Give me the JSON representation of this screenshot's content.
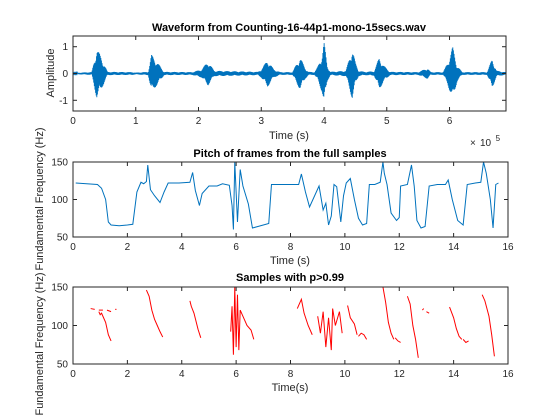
{
  "chart_data": [
    {
      "type": "line",
      "title": "Waveform from Counting-16-44p1-mono-15secs.wav",
      "xlabel": "Time (s)",
      "ylabel": "Amplitude",
      "x_exponent_label": "10",
      "x_exponent_power": "5",
      "xlim": [
        0,
        6.9
      ],
      "ylim": [
        -1.4,
        1.4
      ],
      "xticks": [
        0,
        1,
        2,
        3,
        4,
        5,
        6
      ],
      "yticks": [
        -1,
        0,
        1
      ],
      "color": "#0072BD",
      "series": [
        {
          "envelope": [
            [
              0.0,
              0.02
            ],
            [
              0.3,
              0.05
            ],
            [
              0.38,
              0.95
            ],
            [
              0.45,
              0.6
            ],
            [
              0.55,
              0.06
            ],
            [
              0.95,
              0.05
            ],
            [
              1.0,
              0.03
            ],
            [
              1.2,
              0.06
            ],
            [
              1.25,
              0.7
            ],
            [
              1.35,
              0.4
            ],
            [
              1.45,
              0.06
            ],
            [
              1.9,
              0.05
            ],
            [
              2.05,
              0.15
            ],
            [
              2.15,
              0.45
            ],
            [
              2.25,
              0.1
            ],
            [
              2.95,
              0.06
            ],
            [
              3.0,
              0.15
            ],
            [
              3.1,
              0.5
            ],
            [
              3.2,
              0.15
            ],
            [
              3.3,
              0.05
            ],
            [
              3.5,
              0.05
            ],
            [
              3.55,
              0.3
            ],
            [
              3.62,
              0.6
            ],
            [
              3.7,
              0.2
            ],
            [
              3.75,
              0.06
            ],
            [
              3.85,
              0.05
            ],
            [
              3.9,
              0.25
            ],
            [
              3.97,
              0.7
            ],
            [
              4.0,
              1.2
            ],
            [
              4.05,
              0.3
            ],
            [
              4.1,
              0.06
            ],
            [
              4.35,
              0.1
            ],
            [
              4.45,
              0.95
            ],
            [
              4.5,
              0.4
            ],
            [
              4.55,
              0.1
            ],
            [
              4.65,
              0.06
            ],
            [
              4.8,
              0.08
            ],
            [
              4.88,
              0.6
            ],
            [
              4.95,
              0.3
            ],
            [
              5.05,
              0.06
            ],
            [
              5.5,
              0.05
            ],
            [
              5.65,
              0.2
            ],
            [
              5.7,
              0.05
            ],
            [
              5.9,
              0.05
            ],
            [
              5.97,
              0.4
            ],
            [
              6.05,
              1.0
            ],
            [
              6.12,
              0.3
            ],
            [
              6.2,
              0.05
            ],
            [
              6.6,
              0.05
            ],
            [
              6.68,
              0.55
            ],
            [
              6.75,
              0.1
            ],
            [
              6.9,
              0.05
            ]
          ]
        }
      ]
    },
    {
      "type": "line",
      "title": "Pitch of frames from the full samples",
      "xlabel": "Time (s)",
      "ylabel": "Fundamental Frequency (Hz)",
      "xlim": [
        0,
        16
      ],
      "ylim": [
        50,
        150
      ],
      "xticks": [
        0,
        2,
        4,
        6,
        8,
        10,
        12,
        14,
        16
      ],
      "yticks": [
        50,
        100,
        150
      ],
      "color": "#0072BD",
      "series": [
        {
          "points": [
            [
              0.1,
              122
            ],
            [
              0.5,
              121
            ],
            [
              0.9,
              120
            ],
            [
              1.05,
              115
            ],
            [
              1.2,
              100
            ],
            [
              1.3,
              70
            ],
            [
              1.4,
              66
            ],
            [
              1.7,
              65
            ],
            [
              2.0,
              66
            ],
            [
              2.2,
              67
            ],
            [
              2.35,
              110
            ],
            [
              2.5,
              123
            ],
            [
              2.6,
              121
            ],
            [
              2.7,
              124
            ],
            [
              2.75,
              146
            ],
            [
              2.85,
              113
            ],
            [
              3.0,
              105
            ],
            [
              3.2,
              96
            ],
            [
              3.35,
              110
            ],
            [
              3.5,
              122
            ],
            [
              3.9,
              122
            ],
            [
              4.3,
              123
            ],
            [
              4.4,
              136
            ],
            [
              4.5,
              112
            ],
            [
              4.65,
              92
            ],
            [
              4.75,
              108
            ],
            [
              5.0,
              118
            ],
            [
              5.3,
              118
            ],
            [
              5.5,
              121
            ],
            [
              5.75,
              119
            ],
            [
              5.85,
              92
            ],
            [
              5.9,
              60
            ],
            [
              5.95,
              150
            ],
            [
              6.05,
              70
            ],
            [
              6.15,
              140
            ],
            [
              6.25,
              118
            ],
            [
              6.45,
              94
            ],
            [
              6.6,
              62
            ],
            [
              6.8,
              64
            ],
            [
              7.0,
              66
            ],
            [
              7.2,
              68
            ],
            [
              7.3,
              120
            ],
            [
              7.6,
              120
            ],
            [
              8.0,
              120
            ],
            [
              8.3,
              120
            ],
            [
              8.4,
              134
            ],
            [
              8.55,
              110
            ],
            [
              8.7,
              90
            ],
            [
              8.9,
              106
            ],
            [
              9.05,
              118
            ],
            [
              9.2,
              86
            ],
            [
              9.3,
              95
            ],
            [
              9.4,
              66
            ],
            [
              9.5,
              78
            ],
            [
              9.6,
              120
            ],
            [
              9.7,
              117
            ],
            [
              9.85,
              70
            ],
            [
              9.95,
              105
            ],
            [
              10.05,
              122
            ],
            [
              10.2,
              128
            ],
            [
              10.35,
              100
            ],
            [
              10.5,
              75
            ],
            [
              10.65,
              66
            ],
            [
              10.8,
              68
            ],
            [
              10.9,
              120
            ],
            [
              11.1,
              120
            ],
            [
              11.3,
              123
            ],
            [
              11.4,
              150
            ],
            [
              11.45,
              135
            ],
            [
              11.55,
              120
            ],
            [
              11.7,
              82
            ],
            [
              11.9,
              72
            ],
            [
              12.0,
              76
            ],
            [
              12.05,
              118
            ],
            [
              12.3,
              120
            ],
            [
              12.45,
              146
            ],
            [
              12.55,
              118
            ],
            [
              12.65,
              72
            ],
            [
              12.8,
              62
            ],
            [
              12.95,
              64
            ],
            [
              13.1,
              118
            ],
            [
              13.4,
              120
            ],
            [
              13.7,
              120
            ],
            [
              13.8,
              126
            ],
            [
              13.95,
              100
            ],
            [
              14.15,
              72
            ],
            [
              14.35,
              66
            ],
            [
              14.5,
              120
            ],
            [
              14.8,
              122
            ],
            [
              15.0,
              123
            ],
            [
              15.1,
              150
            ],
            [
              15.2,
              135
            ],
            [
              15.35,
              100
            ],
            [
              15.45,
              62
            ],
            [
              15.55,
              120
            ],
            [
              15.65,
              122
            ]
          ]
        }
      ]
    },
    {
      "type": "line",
      "title": "Samples with p>0.99",
      "xlabel": "Time(s)",
      "ylabel": "Fundamental Frequency (Hz)",
      "xlim": [
        0,
        16
      ],
      "ylim": [
        50,
        150
      ],
      "xticks": [
        0,
        2,
        4,
        6,
        8,
        10,
        12,
        14,
        16
      ],
      "yticks": [
        50,
        100,
        150
      ],
      "color": "#ff0000",
      "segments": [
        [
          [
            0.65,
            122
          ],
          [
            0.8,
            121
          ]
        ],
        [
          [
            0.95,
            120
          ],
          [
            1.1,
            120
          ]
        ],
        [
          [
            1.25,
            120
          ],
          [
            1.4,
            118
          ]
        ],
        [
          [
            1.55,
            121
          ],
          [
            1.6,
            121
          ]
        ],
        [
          [
            0.95,
            118
          ],
          [
            1.0,
            114
          ],
          [
            1.05,
            116
          ],
          [
            1.1,
            112
          ],
          [
            1.2,
            104
          ],
          [
            1.3,
            88
          ],
          [
            1.4,
            80
          ]
        ],
        [
          [
            2.7,
            146
          ],
          [
            2.8,
            138
          ],
          [
            2.9,
            120
          ],
          [
            3.0,
            108
          ],
          [
            3.1,
            100
          ],
          [
            3.2,
            92
          ],
          [
            3.3,
            85
          ]
        ],
        [
          [
            4.3,
            132
          ],
          [
            4.35,
            125
          ],
          [
            4.45,
            116
          ],
          [
            4.6,
            95
          ],
          [
            4.7,
            84
          ]
        ],
        [
          [
            5.8,
            92
          ],
          [
            5.85,
            125
          ],
          [
            5.9,
            62
          ],
          [
            5.95,
            150
          ],
          [
            6.0,
            72
          ],
          [
            6.05,
            140
          ],
          [
            6.1,
            68
          ],
          [
            6.15,
            120
          ],
          [
            6.3,
            108
          ],
          [
            6.4,
            100
          ],
          [
            6.55,
            94
          ],
          [
            6.65,
            82
          ]
        ],
        [
          [
            8.25,
            122
          ],
          [
            8.4,
            134
          ],
          [
            8.5,
            116
          ],
          [
            8.65,
            100
          ],
          [
            8.8,
            88
          ]
        ],
        [
          [
            9.0,
            112
          ],
          [
            9.1,
            90
          ],
          [
            9.2,
            118
          ],
          [
            9.3,
            72
          ],
          [
            9.4,
            110
          ],
          [
            9.5,
            68
          ],
          [
            9.55,
            122
          ],
          [
            9.65,
            100
          ],
          [
            9.8,
            118
          ],
          [
            9.9,
            90
          ]
        ],
        [
          [
            10.1,
            126
          ],
          [
            10.2,
            110
          ],
          [
            10.35,
            102
          ],
          [
            10.45,
            88
          ]
        ],
        [
          [
            10.5,
            86
          ],
          [
            10.6,
            90
          ],
          [
            10.7,
            88
          ],
          [
            10.8,
            82
          ]
        ],
        [
          [
            11.4,
            150
          ],
          [
            11.5,
            130
          ],
          [
            11.6,
            104
          ],
          [
            11.7,
            90
          ],
          [
            11.8,
            82
          ]
        ],
        [
          [
            11.85,
            84
          ],
          [
            11.95,
            80
          ],
          [
            12.05,
            78
          ]
        ],
        [
          [
            12.3,
            138
          ],
          [
            12.4,
            128
          ],
          [
            12.5,
            100
          ],
          [
            12.6,
            82
          ],
          [
            12.7,
            58
          ]
        ],
        [
          [
            12.85,
            120
          ],
          [
            12.9,
            122
          ]
        ],
        [
          [
            13.0,
            118
          ],
          [
            13.1,
            116
          ]
        ],
        [
          [
            13.85,
            124
          ],
          [
            14.0,
            110
          ],
          [
            14.1,
            96
          ],
          [
            14.2,
            86
          ],
          [
            14.3,
            82
          ]
        ],
        [
          [
            14.35,
            82
          ],
          [
            14.45,
            78
          ],
          [
            14.55,
            80
          ]
        ],
        [
          [
            15.05,
            140
          ],
          [
            15.15,
            132
          ],
          [
            15.3,
            112
          ],
          [
            15.4,
            88
          ],
          [
            15.5,
            60
          ]
        ]
      ]
    }
  ]
}
